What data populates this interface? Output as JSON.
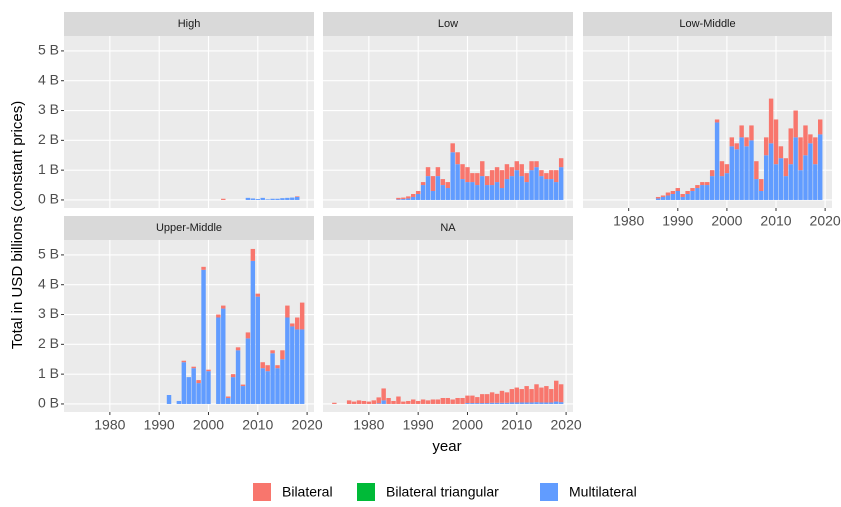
{
  "chart_data": [
    {
      "type": "bar",
      "stacked": true,
      "title": "High",
      "x": [
        2003,
        2008,
        2009,
        2010,
        2011,
        2012,
        2013,
        2014,
        2015,
        2016,
        2017,
        2018
      ],
      "series": [
        {
          "name": "Bilateral",
          "color": "#F8766D",
          "values": [
            0.04,
            0,
            0,
            0,
            0,
            0,
            0,
            0,
            0,
            0,
            0,
            0.02
          ]
        },
        {
          "name": "Bilateral triangular",
          "color": "#00BA38",
          "values": [
            0,
            0,
            0,
            0,
            0,
            0,
            0,
            0,
            0,
            0,
            0,
            0
          ]
        },
        {
          "name": "Multilateral",
          "color": "#619CFF",
          "values": [
            0,
            0.07,
            0.05,
            0.03,
            0.07,
            0.02,
            0.04,
            0.04,
            0.06,
            0.07,
            0.08,
            0.1
          ]
        }
      ],
      "xlim": [
        1970.7,
        2021.4
      ],
      "ylim": [
        -0.27,
        5.5
      ],
      "xticks": [
        1980,
        1990,
        2000,
        2010,
        2020
      ],
      "yticks": [
        {
          "value": 0,
          "label": "0 B"
        },
        {
          "value": 1,
          "label": "1 B"
        },
        {
          "value": 2,
          "label": "2 B"
        },
        {
          "value": 3,
          "label": "3 B"
        },
        {
          "value": 4,
          "label": "4 B"
        },
        {
          "value": 5,
          "label": "5 B"
        }
      ],
      "grid": true
    },
    {
      "type": "bar",
      "stacked": true,
      "title": "Low",
      "x": [
        1986,
        1987,
        1988,
        1989,
        1990,
        1991,
        1992,
        1993,
        1994,
        1995,
        1996,
        1997,
        1998,
        1999,
        2000,
        2001,
        2002,
        2003,
        2004,
        2005,
        2006,
        2007,
        2008,
        2009,
        2010,
        2011,
        2012,
        2013,
        2014,
        2015,
        2016,
        2017,
        2018,
        2019
      ],
      "series": [
        {
          "name": "Bilateral",
          "color": "#F8766D",
          "values": [
            0.05,
            0.05,
            0.07,
            0.1,
            0.1,
            0.1,
            0.3,
            0.5,
            0.3,
            0.2,
            0.2,
            0.3,
            0.4,
            0.5,
            0.5,
            0.3,
            0.4,
            0.5,
            0.3,
            0.5,
            0.5,
            0.6,
            0.5,
            0.3,
            0.3,
            0.4,
            0.3,
            0.3,
            0.2,
            0.2,
            0.2,
            0.3,
            0.4,
            0.3
          ]
        },
        {
          "name": "Bilateral triangular",
          "color": "#00BA38",
          "values": [
            0,
            0,
            0,
            0,
            0,
            0,
            0,
            0,
            0,
            0,
            0,
            0,
            0,
            0,
            0,
            0,
            0,
            0,
            0,
            0,
            0,
            0,
            0,
            0,
            0,
            0,
            0,
            0,
            0,
            0,
            0,
            0,
            0,
            0
          ]
        },
        {
          "name": "Multilateral",
          "color": "#619CFF",
          "values": [
            0.02,
            0.03,
            0.05,
            0.1,
            0.2,
            0.5,
            0.8,
            0.3,
            0.8,
            0.5,
            0.4,
            1.6,
            1.2,
            0.7,
            0.6,
            0.6,
            0.5,
            0.8,
            0.5,
            0.5,
            0.6,
            0.4,
            0.7,
            0.8,
            1.0,
            0.8,
            0.6,
            1.0,
            1.1,
            0.8,
            0.7,
            0.7,
            0.6,
            1.1
          ]
        }
      ],
      "xlim": [
        1970.7,
        2021.4
      ],
      "ylim": [
        -0.27,
        5.5
      ],
      "xticks": [
        1980,
        1990,
        2000,
        2010,
        2020
      ],
      "yticks": [
        {
          "value": 0,
          "label": "0 B"
        },
        {
          "value": 1,
          "label": "1 B"
        },
        {
          "value": 2,
          "label": "2 B"
        },
        {
          "value": 3,
          "label": "3 B"
        },
        {
          "value": 4,
          "label": "4 B"
        },
        {
          "value": 5,
          "label": "5 B"
        }
      ],
      "grid": true
    },
    {
      "type": "bar",
      "stacked": true,
      "title": "Low-Middle",
      "x": [
        1986,
        1987,
        1988,
        1989,
        1990,
        1991,
        1992,
        1993,
        1994,
        1995,
        1996,
        1997,
        1998,
        1999,
        2000,
        2001,
        2002,
        2003,
        2004,
        2005,
        2006,
        2007,
        2008,
        2009,
        2010,
        2011,
        2012,
        2013,
        2014,
        2015,
        2016,
        2017,
        2018,
        2019
      ],
      "series": [
        {
          "name": "Bilateral",
          "color": "#F8766D",
          "values": [
            0.05,
            0.05,
            0.1,
            0.1,
            0.1,
            0.1,
            0.1,
            0.1,
            0.1,
            0.1,
            0.1,
            0.2,
            0.1,
            0.5,
            0.3,
            0.3,
            0.2,
            0.4,
            0.3,
            0.5,
            0.6,
            0.4,
            0.6,
            1.5,
            1.5,
            0.4,
            0.6,
            1.2,
            0.9,
            1.1,
            1.0,
            0.3,
            0.9,
            0.5
          ]
        },
        {
          "name": "Bilateral triangular",
          "color": "#00BA38",
          "values": [
            0,
            0,
            0,
            0,
            0,
            0,
            0,
            0,
            0,
            0,
            0,
            0,
            0,
            0,
            0,
            0,
            0,
            0,
            0,
            0,
            0,
            0,
            0,
            0,
            0,
            0,
            0,
            0,
            0,
            0,
            0,
            0,
            0,
            0
          ]
        },
        {
          "name": "Multilateral",
          "color": "#619CFF",
          "values": [
            0.05,
            0.1,
            0.15,
            0.2,
            0.3,
            0.1,
            0.2,
            0.3,
            0.4,
            0.5,
            0.5,
            0.8,
            2.6,
            0.8,
            0.9,
            1.8,
            1.7,
            2.1,
            1.8,
            2.0,
            0.7,
            0.3,
            1.5,
            1.9,
            1.2,
            1.4,
            0.8,
            1.2,
            2.1,
            1.0,
            1.5,
            1.9,
            1.2,
            2.2
          ]
        }
      ],
      "xlim": [
        1970.7,
        2021.4
      ],
      "ylim": [
        -0.27,
        5.5
      ],
      "xticks": [
        1980,
        1990,
        2000,
        2010,
        2020
      ],
      "yticks": [
        {
          "value": 0,
          "label": "0 B"
        },
        {
          "value": 1,
          "label": "1 B"
        },
        {
          "value": 2,
          "label": "2 B"
        },
        {
          "value": 3,
          "label": "3 B"
        },
        {
          "value": 4,
          "label": "4 B"
        },
        {
          "value": 5,
          "label": "5 B"
        }
      ],
      "grid": true
    },
    {
      "type": "bar",
      "stacked": true,
      "title": "Upper-Middle",
      "x": [
        1992,
        1994,
        1995,
        1996,
        1997,
        1998,
        1999,
        2000,
        2002,
        2003,
        2004,
        2005,
        2006,
        2007,
        2008,
        2009,
        2010,
        2011,
        2012,
        2013,
        2014,
        2015,
        2016,
        2017,
        2018,
        2019
      ],
      "series": [
        {
          "name": "Bilateral",
          "color": "#F8766D",
          "values": [
            0,
            0,
            0.05,
            0,
            0.05,
            0.1,
            0.1,
            0.05,
            0.1,
            0.1,
            0.05,
            0.1,
            0.1,
            0.05,
            0.2,
            0.4,
            0.1,
            0.2,
            0.2,
            0.1,
            0.1,
            0.3,
            0.4,
            0.1,
            0.4,
            0.9
          ]
        },
        {
          "name": "Bilateral triangular",
          "color": "#00BA38",
          "values": [
            0,
            0,
            0,
            0,
            0,
            0,
            0,
            0,
            0,
            0,
            0,
            0,
            0,
            0,
            0,
            0,
            0,
            0,
            0,
            0,
            0,
            0,
            0,
            0,
            0,
            0
          ]
        },
        {
          "name": "Multilateral",
          "color": "#619CFF",
          "values": [
            0.3,
            0.1,
            1.4,
            0.9,
            1.2,
            0.7,
            4.5,
            1.1,
            2.9,
            3.2,
            0.2,
            0.9,
            1.8,
            0.6,
            2.2,
            4.8,
            3.6,
            1.2,
            1.1,
            1.7,
            1.2,
            1.5,
            2.9,
            2.6,
            2.5,
            2.5
          ]
        }
      ],
      "xlim": [
        1970.7,
        2021.4
      ],
      "ylim": [
        -0.27,
        5.5
      ],
      "xticks": [
        1980,
        1990,
        2000,
        2010,
        2020
      ],
      "yticks": [
        {
          "value": 0,
          "label": "0 B"
        },
        {
          "value": 1,
          "label": "1 B"
        },
        {
          "value": 2,
          "label": "2 B"
        },
        {
          "value": 3,
          "label": "3 B"
        },
        {
          "value": 4,
          "label": "4 B"
        },
        {
          "value": 5,
          "label": "5 B"
        }
      ],
      "grid": true
    },
    {
      "type": "bar",
      "stacked": true,
      "title": "NA",
      "x": [
        1973,
        1976,
        1977,
        1978,
        1979,
        1980,
        1981,
        1982,
        1983,
        1984,
        1985,
        1986,
        1987,
        1988,
        1989,
        1990,
        1991,
        1992,
        1993,
        1994,
        1995,
        1996,
        1997,
        1998,
        1999,
        2000,
        2001,
        2002,
        2003,
        2004,
        2005,
        2006,
        2007,
        2008,
        2009,
        2010,
        2011,
        2012,
        2013,
        2014,
        2015,
        2016,
        2017,
        2018,
        2019
      ],
      "series": [
        {
          "name": "Bilateral",
          "color": "#F8766D",
          "values": [
            0.04,
            0.12,
            0.08,
            0.12,
            0.1,
            0.08,
            0.12,
            0.2,
            0.4,
            0.2,
            0.1,
            0.25,
            0.08,
            0.1,
            0.15,
            0.1,
            0.15,
            0.12,
            0.15,
            0.15,
            0.2,
            0.2,
            0.15,
            0.2,
            0.2,
            0.25,
            0.25,
            0.2,
            0.3,
            0.3,
            0.35,
            0.3,
            0.4,
            0.35,
            0.45,
            0.5,
            0.45,
            0.55,
            0.45,
            0.6,
            0.5,
            0.55,
            0.45,
            0.7,
            0.6
          ]
        },
        {
          "name": "Bilateral triangular",
          "color": "#00BA38",
          "values": [
            0,
            0,
            0,
            0,
            0,
            0,
            0,
            0,
            0,
            0,
            0,
            0,
            0,
            0,
            0,
            0,
            0,
            0,
            0,
            0,
            0,
            0,
            0,
            0,
            0,
            0,
            0,
            0,
            0,
            0,
            0,
            0,
            0,
            0,
            0,
            0,
            0,
            0,
            0,
            0,
            0,
            0,
            0,
            0,
            0
          ]
        },
        {
          "name": "Multilateral",
          "color": "#619CFF",
          "values": [
            0,
            0,
            0,
            0,
            0,
            0,
            0,
            0.02,
            0.12,
            0,
            0,
            0,
            0,
            0,
            0,
            0,
            0,
            0,
            0,
            0,
            0,
            0,
            0,
            0,
            0,
            0.03,
            0.03,
            0.03,
            0.03,
            0.03,
            0.04,
            0.04,
            0.04,
            0.04,
            0.05,
            0.05,
            0.05,
            0.05,
            0.05,
            0.06,
            0.05,
            0.05,
            0.05,
            0.08,
            0.06
          ]
        }
      ],
      "xlim": [
        1970.7,
        2021.4
      ],
      "ylim": [
        -0.27,
        5.5
      ],
      "xticks": [
        1980,
        1990,
        2000,
        2010,
        2020
      ],
      "yticks": [
        {
          "value": 0,
          "label": "0 B"
        },
        {
          "value": 1,
          "label": "1 B"
        },
        {
          "value": 2,
          "label": "2 B"
        },
        {
          "value": 3,
          "label": "3 B"
        },
        {
          "value": 4,
          "label": "4 B"
        },
        {
          "value": 5,
          "label": "5 B"
        }
      ],
      "grid": true
    }
  ],
  "xlabel": "year",
  "ylabel": "Total in USD billions (constant prices)"
}
